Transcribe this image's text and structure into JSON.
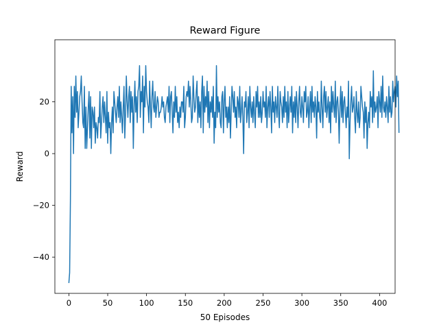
{
  "chart_data": {
    "type": "line",
    "title": "Reward Figure",
    "xlabel": "50 Episodes",
    "ylabel": "Reward",
    "xlim": [
      -18,
      420
    ],
    "ylim": [
      -54,
      44
    ],
    "xticks": [
      0,
      50,
      100,
      150,
      200,
      250,
      300,
      350,
      400
    ],
    "yticks": [
      -40,
      -20,
      0,
      20
    ],
    "ytick_labels": [
      "−40",
      "−20",
      "0",
      "20"
    ],
    "grid": false,
    "line_color": "#1f77b4",
    "series": [
      {
        "values": [
          -50,
          -46,
          -18,
          26,
          8,
          22,
          0,
          26,
          14,
          30,
          16,
          24,
          10,
          16,
          22,
          24,
          30,
          20,
          12,
          10,
          26,
          2,
          18,
          2,
          10,
          18,
          24,
          6,
          22,
          2,
          18,
          16,
          10,
          18,
          4,
          12,
          10,
          6,
          14,
          12,
          24,
          6,
          12,
          18,
          22,
          12,
          20,
          14,
          8,
          24,
          4,
          16,
          10,
          12,
          0,
          12,
          18,
          8,
          24,
          20,
          16,
          12,
          18,
          22,
          14,
          26,
          12,
          20,
          14,
          8,
          18,
          26,
          6,
          16,
          30,
          20,
          14,
          22,
          26,
          12,
          24,
          16,
          22,
          2,
          18,
          28,
          16,
          22,
          12,
          24,
          26,
          34,
          14,
          24,
          20,
          30,
          8,
          26,
          18,
          34,
          24,
          20,
          18,
          12,
          28,
          18,
          10,
          22,
          28,
          18,
          16,
          24,
          14,
          18,
          22,
          20,
          14,
          16,
          16,
          18,
          22,
          18,
          20,
          14,
          12,
          18,
          20,
          22,
          16,
          26,
          12,
          22,
          24,
          16,
          8,
          20,
          14,
          26,
          16,
          22,
          12,
          16,
          10,
          18,
          14,
          20,
          20,
          16,
          26,
          10,
          14,
          22,
          24,
          22,
          28,
          18,
          26,
          20,
          12,
          14,
          30,
          22,
          16,
          18,
          24,
          28,
          12,
          22,
          14,
          20,
          10,
          24,
          30,
          8,
          26,
          16,
          22,
          18,
          28,
          12,
          24,
          10,
          20,
          16,
          22,
          14,
          26,
          4,
          16,
          10,
          34,
          14,
          22,
          16,
          20,
          12,
          10,
          22,
          24,
          8,
          20,
          26,
          14,
          18,
          10,
          18,
          12,
          22,
          6,
          16,
          26,
          22,
          16,
          24,
          14,
          18,
          10,
          22,
          20,
          14,
          26,
          12,
          16,
          22,
          14,
          0,
          20,
          18,
          24,
          12,
          16,
          22,
          10,
          26,
          18,
          14,
          20,
          12,
          22,
          16,
          10,
          24,
          18,
          26,
          14,
          20,
          14,
          22,
          12,
          16,
          24,
          18,
          20,
          14,
          26,
          10,
          18,
          22,
          14,
          24,
          18,
          8,
          26,
          16,
          20,
          12,
          22,
          18,
          14,
          26,
          16,
          10,
          24,
          20,
          18,
          12,
          22,
          14,
          26,
          16,
          20,
          10,
          24,
          12,
          18,
          22,
          16,
          26,
          8,
          20,
          14,
          22,
          12,
          24,
          18,
          10,
          20,
          26,
          16,
          14,
          22,
          18,
          12,
          24,
          20,
          26,
          14,
          16,
          22,
          10,
          18,
          24,
          12,
          26,
          16,
          20,
          14,
          22,
          18,
          6,
          24,
          16,
          20,
          14,
          12,
          28,
          18,
          10,
          22,
          26,
          16,
          24,
          14,
          18,
          22,
          12,
          20,
          8,
          26,
          16,
          24,
          18,
          14,
          28,
          12,
          20,
          22,
          16,
          4,
          18,
          26,
          14,
          24,
          12,
          20,
          22,
          16,
          10,
          18,
          14,
          28,
          -2,
          12,
          20,
          26,
          16,
          18,
          22,
          14,
          8,
          24,
          16,
          12,
          20,
          10,
          14,
          26,
          22,
          18,
          16,
          6,
          20,
          12,
          18,
          2,
          12,
          16,
          10,
          24,
          18,
          22,
          12,
          32,
          14,
          20,
          16,
          18,
          22,
          10,
          24,
          20,
          16,
          26,
          14,
          30,
          18,
          16,
          20,
          14,
          22,
          18,
          12,
          26,
          16,
          22,
          14,
          16,
          28,
          20,
          24,
          26,
          18,
          30,
          22,
          28,
          8
        ]
      }
    ]
  }
}
